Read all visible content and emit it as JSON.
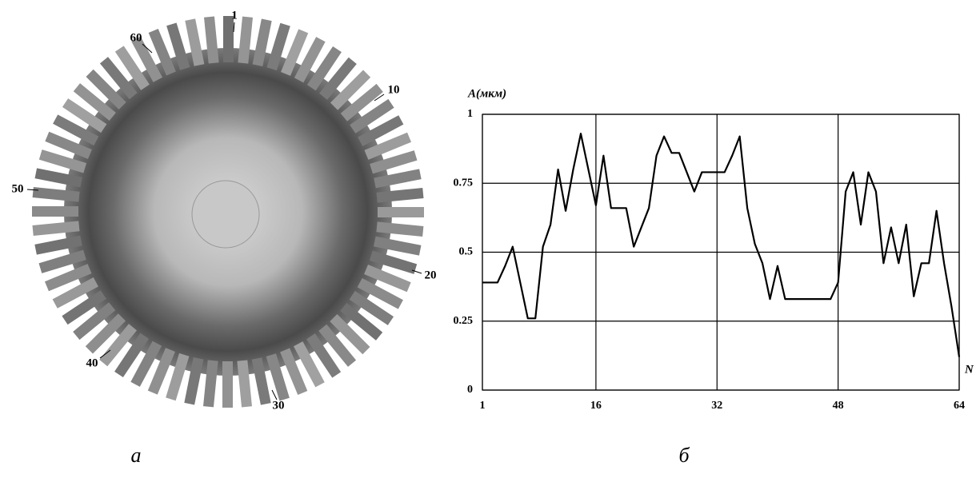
{
  "photo": {
    "labels": [
      "1",
      "60",
      "10",
      "50",
      "20",
      "40",
      "30"
    ],
    "caption": "а"
  },
  "chart_data": {
    "type": "line",
    "y_label": "A(мкм)",
    "x_label": "N",
    "caption": "б",
    "x": [
      1,
      2,
      3,
      4,
      5,
      6,
      7,
      8,
      9,
      10,
      11,
      12,
      13,
      14,
      15,
      16,
      17,
      18,
      19,
      20,
      21,
      22,
      23,
      24,
      25,
      26,
      27,
      28,
      29,
      30,
      31,
      32,
      33,
      34,
      35,
      36,
      37,
      38,
      39,
      40,
      41,
      42,
      43,
      44,
      45,
      46,
      47,
      48,
      49,
      50,
      51,
      52,
      53,
      54,
      55,
      56,
      57,
      58,
      59,
      60,
      61,
      62,
      63,
      64
    ],
    "series": [
      {
        "color": "#000000",
        "values": [
          0.39,
          0.39,
          0.39,
          0.45,
          0.52,
          0.39,
          0.26,
          0.26,
          0.52,
          0.6,
          0.8,
          0.65,
          0.8,
          0.93,
          0.8,
          0.67,
          0.85,
          0.66,
          0.66,
          0.66,
          0.52,
          0.59,
          0.66,
          0.85,
          0.92,
          0.86,
          0.86,
          0.79,
          0.72,
          0.79,
          0.79,
          0.79,
          0.79,
          0.85,
          0.92,
          0.66,
          0.53,
          0.46,
          0.33,
          0.45,
          0.33,
          0.33,
          0.33,
          0.33,
          0.33,
          0.33,
          0.33,
          0.39,
          0.72,
          0.79,
          0.6,
          0.79,
          0.72,
          0.46,
          0.59,
          0.46,
          0.6,
          0.34,
          0.46,
          0.46,
          0.65,
          0.46,
          0.3,
          0.12
        ]
      }
    ],
    "xlim": [
      1,
      64
    ],
    "xticks": [
      1,
      16,
      32,
      48,
      64
    ],
    "ylim": [
      0,
      1
    ],
    "yticks": [
      0,
      0.25,
      0.5,
      0.75,
      1
    ],
    "grid": true
  }
}
